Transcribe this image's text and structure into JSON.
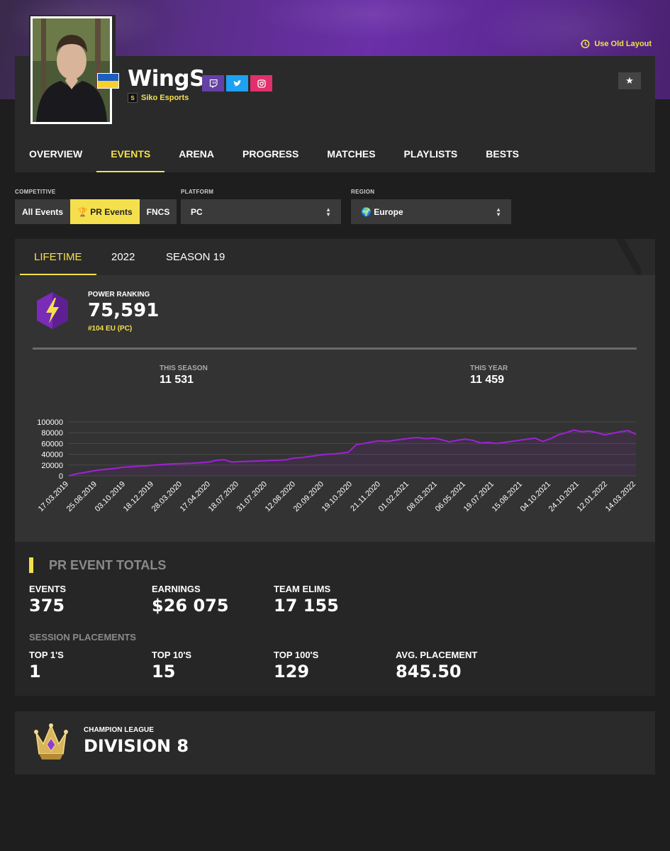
{
  "header": {
    "old_layout_label": "Use Old Layout",
    "player_name": "WingS",
    "team_name": "Siko Esports",
    "country_flag": "ukraine-flag",
    "socials": [
      {
        "name": "twitch-icon",
        "glyph": "▣"
      },
      {
        "name": "twitter-icon",
        "glyph": "✦"
      },
      {
        "name": "instagram-icon",
        "glyph": "◎"
      }
    ],
    "star_glyph": "★"
  },
  "nav": {
    "tabs": [
      {
        "label": "OVERVIEW",
        "active": false
      },
      {
        "label": "EVENTS",
        "active": true
      },
      {
        "label": "ARENA",
        "active": false
      },
      {
        "label": "PROGRESS",
        "active": false
      },
      {
        "label": "MATCHES",
        "active": false
      },
      {
        "label": "PLAYLISTS",
        "active": false
      },
      {
        "label": "BESTS",
        "active": false
      }
    ]
  },
  "filters": {
    "competitive_label": "COMPETITIVE",
    "competitive_options": [
      {
        "label": "All Events",
        "active": false
      },
      {
        "label": "🏆 PR Events",
        "active": true
      },
      {
        "label": "FNCS",
        "active": false
      }
    ],
    "platform_label": "PLATFORM",
    "platform_value": "PC",
    "region_label": "REGION",
    "region_value": "🌍 Europe"
  },
  "stats": {
    "tabs": [
      {
        "label": "LIFETIME",
        "active": true
      },
      {
        "label": "2022",
        "active": false
      },
      {
        "label": "SEASON 19",
        "active": false
      }
    ],
    "power_ranking_label": "POWER RANKING",
    "power_ranking_value": "75,591",
    "power_ranking_rank": "#104 EU (PC)",
    "this_season_label": "THIS SEASON",
    "this_season_value": "11 531",
    "this_year_label": "THIS YEAR",
    "this_year_value": "11 459"
  },
  "chart_data": {
    "type": "line",
    "title": "",
    "xlabel": "",
    "ylabel": "",
    "ylim": [
      0,
      100000
    ],
    "yticks": [
      0,
      20000,
      40000,
      60000,
      80000,
      100000
    ],
    "grid": true,
    "color": "#a020d8",
    "x_tick_labels": [
      "17.03.2019",
      "25.08.2019",
      "03.10.2019",
      "18.12.2019",
      "28.03.2020",
      "17.04.2020",
      "18.07.2020",
      "31.07.2020",
      "12.08.2020",
      "20.09.2020",
      "19.10.2020",
      "21.11.2020",
      "01.02.2021",
      "08.03.2021",
      "06.05.2021",
      "19.07.2021",
      "15.08.2021",
      "04.10.2021",
      "24.10.2021",
      "12.01.2022",
      "14.03.2022"
    ],
    "series": [
      {
        "values": [
          0,
          4000,
          6000,
          9000,
          11000,
          12500,
          14000,
          16000,
          17000,
          18000,
          18500,
          20000,
          21000,
          22000,
          22500,
          23000,
          23500,
          24500,
          25500,
          29000,
          30000,
          25500,
          26500,
          27000,
          27500,
          28000,
          28500,
          29000,
          30000,
          33000,
          34000,
          36000,
          38000,
          40000,
          40500,
          42000,
          44000,
          58000,
          60000,
          63000,
          65000,
          64000,
          66000,
          68000,
          70000,
          71000,
          69000,
          70000,
          67000,
          63000,
          66000,
          68000,
          66000,
          61000,
          62000,
          60000,
          62000,
          64000,
          66000,
          68000,
          70000,
          64000,
          69000,
          76000,
          80000,
          85000,
          82000,
          83000,
          80000,
          76000,
          79000,
          82000,
          84000,
          77000
        ]
      }
    ]
  },
  "totals": {
    "title": "PR EVENT TOTALS",
    "events_label": "EVENTS",
    "events_value": "375",
    "earnings_label": "EARNINGS",
    "earnings_value": "$26 075",
    "elims_label": "TEAM ELIMS",
    "elims_value": "17 155",
    "session_label": "SESSION PLACEMENTS",
    "top1_label": "TOP 1'S",
    "top1_value": "1",
    "top10_label": "TOP 10'S",
    "top10_value": "15",
    "top100_label": "TOP 100'S",
    "top100_value": "129",
    "avg_label": "AVG. PLACEMENT",
    "avg_value": "845.50"
  },
  "league": {
    "label": "CHAMPION LEAGUE",
    "value": "DIVISION 8"
  },
  "colors": {
    "accent": "#f4e04d",
    "panel": "#333333",
    "line": "#a020d8"
  }
}
